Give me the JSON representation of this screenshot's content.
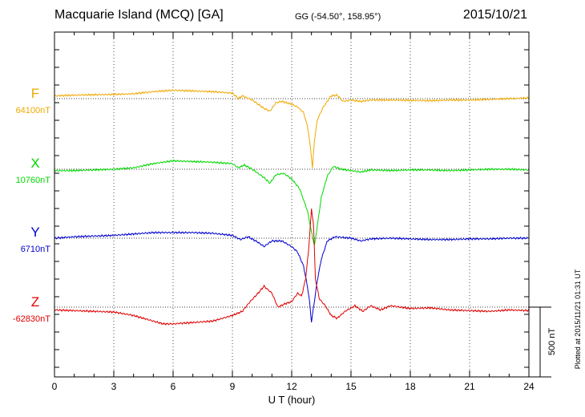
{
  "header": {
    "station": "Macquarie Island (MCQ)  [GA]",
    "coords": "GG (-54.50°, 158.95°)",
    "date": "2015/10/21"
  },
  "footer": {
    "plotted": "Plotted at 2015/11/21 01:31  UT"
  },
  "chart_data": {
    "type": "line",
    "xlabel": "U T (hour)",
    "xlim": [
      0,
      24
    ],
    "xticks": [
      0,
      3,
      6,
      9,
      12,
      15,
      18,
      21,
      24
    ],
    "scale_bar": {
      "label": "500 nT",
      "value": 500
    },
    "series": [
      {
        "name": "F",
        "baseline_label": "64100nT",
        "baseline": 64100,
        "color": "#f0a800",
        "points": [
          [
            0,
            20
          ],
          [
            1,
            25
          ],
          [
            2,
            28
          ],
          [
            3,
            30
          ],
          [
            4,
            35
          ],
          [
            5,
            50
          ],
          [
            5.5,
            55
          ],
          [
            6,
            60
          ],
          [
            7,
            55
          ],
          [
            8,
            50
          ],
          [
            9,
            40
          ],
          [
            9.3,
            0
          ],
          [
            9.5,
            20
          ],
          [
            10,
            -10
          ],
          [
            10.3,
            -40
          ],
          [
            10.6,
            -70
          ],
          [
            10.9,
            -90
          ],
          [
            11.2,
            -30
          ],
          [
            11.5,
            -20
          ],
          [
            12,
            -40
          ],
          [
            12.3,
            -60
          ],
          [
            12.6,
            -100
          ],
          [
            12.8,
            -200
          ],
          [
            12.95,
            -350
          ],
          [
            13.05,
            -500
          ],
          [
            13.15,
            -300
          ],
          [
            13.3,
            -150
          ],
          [
            13.6,
            -60
          ],
          [
            14,
            20
          ],
          [
            14.3,
            25
          ],
          [
            14.6,
            -20
          ],
          [
            15,
            -10
          ],
          [
            15.5,
            -20
          ],
          [
            16,
            -10
          ],
          [
            17,
            -10
          ],
          [
            18,
            -12
          ],
          [
            19,
            -15
          ],
          [
            20,
            -10
          ],
          [
            21,
            -10
          ],
          [
            22,
            -5
          ],
          [
            23,
            0
          ],
          [
            24,
            5
          ]
        ]
      },
      {
        "name": "X",
        "baseline_label": "10760nT",
        "baseline": 10760,
        "color": "#00d800",
        "points": [
          [
            0,
            -10
          ],
          [
            1,
            -10
          ],
          [
            2,
            -5
          ],
          [
            3,
            0
          ],
          [
            4,
            10
          ],
          [
            5,
            40
          ],
          [
            5.5,
            50
          ],
          [
            6,
            60
          ],
          [
            7,
            55
          ],
          [
            8,
            50
          ],
          [
            9,
            40
          ],
          [
            9.3,
            10
          ],
          [
            9.6,
            30
          ],
          [
            10,
            0
          ],
          [
            10.3,
            -30
          ],
          [
            10.6,
            -60
          ],
          [
            10.9,
            -100
          ],
          [
            11.2,
            -40
          ],
          [
            11.6,
            -30
          ],
          [
            12,
            -70
          ],
          [
            12.4,
            -140
          ],
          [
            12.8,
            -300
          ],
          [
            13.0,
            -450
          ],
          [
            13.15,
            -550
          ],
          [
            13.3,
            -400
          ],
          [
            13.5,
            -200
          ],
          [
            13.8,
            -50
          ],
          [
            14.1,
            20
          ],
          [
            14.5,
            0
          ],
          [
            15,
            -10
          ],
          [
            15.5,
            -20
          ],
          [
            16,
            -5
          ],
          [
            17,
            -10
          ],
          [
            18,
            -5
          ],
          [
            19,
            -5
          ],
          [
            20,
            -10
          ],
          [
            21,
            -5
          ],
          [
            22,
            0
          ],
          [
            23,
            0
          ],
          [
            24,
            -5
          ]
        ]
      },
      {
        "name": "Y",
        "baseline_label": "6710nT",
        "baseline": 6710,
        "color": "#0000d0",
        "points": [
          [
            0,
            0
          ],
          [
            1,
            10
          ],
          [
            2,
            15
          ],
          [
            3,
            20
          ],
          [
            4,
            30
          ],
          [
            5,
            40
          ],
          [
            6,
            40
          ],
          [
            7,
            40
          ],
          [
            8,
            35
          ],
          [
            9,
            20
          ],
          [
            9.4,
            -10
          ],
          [
            9.8,
            10
          ],
          [
            10.3,
            -30
          ],
          [
            10.6,
            -60
          ],
          [
            11,
            -20
          ],
          [
            11.5,
            -20
          ],
          [
            12,
            -60
          ],
          [
            12.3,
            -100
          ],
          [
            12.6,
            -200
          ],
          [
            12.8,
            -350
          ],
          [
            12.9,
            -450
          ],
          [
            13.0,
            -600
          ],
          [
            13.1,
            -500
          ],
          [
            13.3,
            -300
          ],
          [
            13.5,
            -150
          ],
          [
            13.8,
            -20
          ],
          [
            14.2,
            10
          ],
          [
            15,
            0
          ],
          [
            15.5,
            -20
          ],
          [
            16,
            -5
          ],
          [
            17,
            0
          ],
          [
            18,
            -5
          ],
          [
            19,
            -10
          ],
          [
            20,
            -10
          ],
          [
            21,
            -5
          ],
          [
            22,
            -5
          ],
          [
            23,
            0
          ],
          [
            24,
            0
          ]
        ]
      },
      {
        "name": "Z",
        "baseline_label": "-62830nT",
        "baseline": -62830,
        "color": "#e00000",
        "points": [
          [
            0,
            -20
          ],
          [
            1,
            -25
          ],
          [
            2,
            -30
          ],
          [
            3,
            -35
          ],
          [
            4,
            -60
          ],
          [
            5,
            -100
          ],
          [
            5.5,
            -120
          ],
          [
            6,
            -120
          ],
          [
            7,
            -110
          ],
          [
            8,
            -100
          ],
          [
            9,
            -60
          ],
          [
            9.5,
            -30
          ],
          [
            9.9,
            40
          ],
          [
            10.3,
            100
          ],
          [
            10.6,
            150
          ],
          [
            11,
            100
          ],
          [
            11.3,
            0
          ],
          [
            11.6,
            20
          ],
          [
            12,
            40
          ],
          [
            12.3,
            100
          ],
          [
            12.5,
            80
          ],
          [
            12.7,
            200
          ],
          [
            12.85,
            400
          ],
          [
            13.0,
            700
          ],
          [
            13.1,
            600
          ],
          [
            13.2,
            200
          ],
          [
            13.4,
            60
          ],
          [
            13.7,
            10
          ],
          [
            14,
            -60
          ],
          [
            14.3,
            -80
          ],
          [
            14.7,
            -30
          ],
          [
            15.2,
            10
          ],
          [
            15.6,
            -30
          ],
          [
            16,
            10
          ],
          [
            16.5,
            -20
          ],
          [
            17,
            10
          ],
          [
            18,
            -10
          ],
          [
            19,
            -5
          ],
          [
            20,
            -20
          ],
          [
            21,
            -25
          ],
          [
            22,
            -30
          ],
          [
            23,
            -20
          ],
          [
            24,
            -25
          ]
        ]
      }
    ]
  }
}
